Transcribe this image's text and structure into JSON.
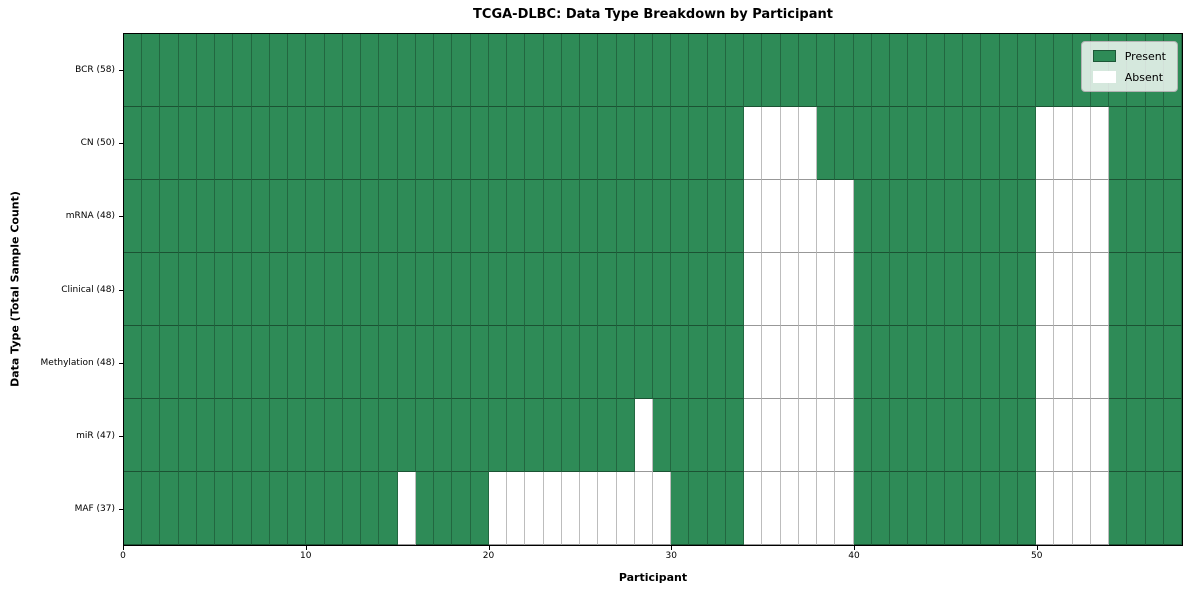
{
  "chart_data": {
    "type": "heatmap",
    "title": "TCGA-DLBC: Data Type Breakdown by Participant",
    "xlabel": "Participant",
    "ylabel": "Data Type (Total Sample Count)",
    "n_participants": 58,
    "x_range": [
      0,
      58
    ],
    "x_ticks": [
      0,
      10,
      20,
      30,
      40,
      50
    ],
    "legend_position": "upper right",
    "legend": [
      {
        "label": "Present",
        "color": "#2e8b57"
      },
      {
        "label": "Absent",
        "color": "#ffffff"
      }
    ],
    "colors": {
      "present": "#2e8b57",
      "absent": "#ffffff"
    },
    "rows": [
      {
        "label": "BCR (58)",
        "data_type": "BCR",
        "present_count": 58,
        "absent_participants": []
      },
      {
        "label": "CN (50)",
        "data_type": "CN",
        "present_count": 50,
        "absent_participants": [
          34,
          35,
          36,
          37,
          50,
          51,
          52,
          53
        ]
      },
      {
        "label": "mRNA (48)",
        "data_type": "mRNA",
        "present_count": 48,
        "absent_participants": [
          34,
          35,
          36,
          37,
          38,
          39,
          50,
          51,
          52,
          53
        ]
      },
      {
        "label": "Clinical (48)",
        "data_type": "Clinical",
        "present_count": 48,
        "absent_participants": [
          34,
          35,
          36,
          37,
          38,
          39,
          50,
          51,
          52,
          53
        ]
      },
      {
        "label": "Methylation (48)",
        "data_type": "Methylation",
        "present_count": 48,
        "absent_participants": [
          34,
          35,
          36,
          37,
          38,
          39,
          50,
          51,
          52,
          53
        ]
      },
      {
        "label": "miR (47)",
        "data_type": "miR",
        "present_count": 47,
        "absent_participants": [
          28,
          34,
          35,
          36,
          37,
          38,
          39,
          50,
          51,
          52,
          53
        ]
      },
      {
        "label": "MAF (37)",
        "data_type": "MAF",
        "present_count": 37,
        "absent_participants": [
          15,
          20,
          21,
          22,
          23,
          24,
          25,
          26,
          27,
          28,
          29,
          34,
          35,
          36,
          37,
          38,
          39,
          50,
          51,
          52,
          53
        ]
      }
    ]
  }
}
